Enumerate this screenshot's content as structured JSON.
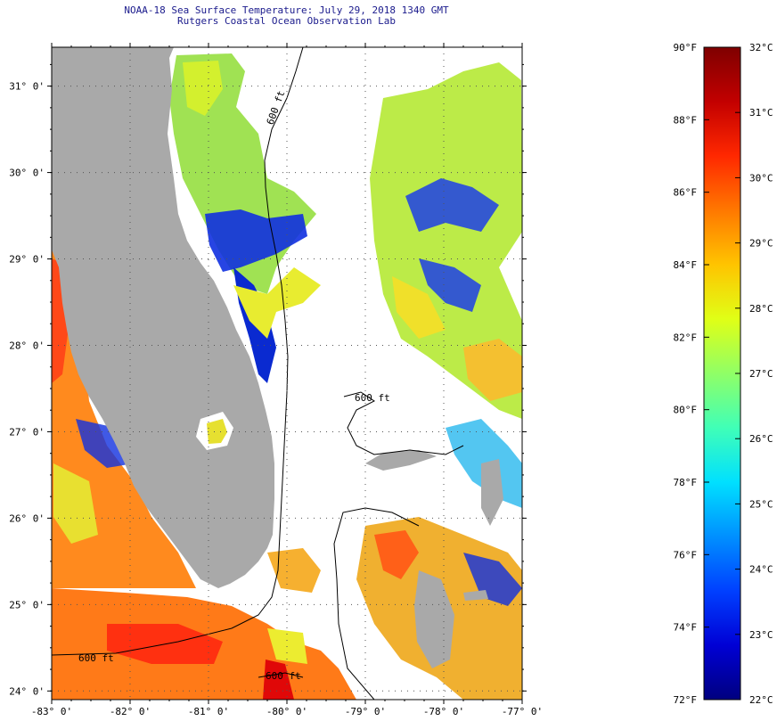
{
  "title": {
    "line1": "NOAA-18 Sea Surface Temperature:  July 29, 2018 1340 GMT",
    "line2": "Rutgers Coastal Ocean Observation Lab"
  },
  "map": {
    "lon_range": [
      -83,
      -77
    ],
    "lat_range": [
      23.9,
      31.45
    ],
    "grid": "dotted",
    "lat_ticks": [
      {
        "lat": 31,
        "label": "31° 0'"
      },
      {
        "lat": 30,
        "label": "30° 0'"
      },
      {
        "lat": 29,
        "label": "29° 0'"
      },
      {
        "lat": 28,
        "label": "28° 0'"
      },
      {
        "lat": 27,
        "label": "27° 0'"
      },
      {
        "lat": 26,
        "label": "26° 0'"
      },
      {
        "lat": 25,
        "label": "25° 0'"
      },
      {
        "lat": 24,
        "label": "24° 0'"
      }
    ],
    "lon_ticks": [
      {
        "lon": -83,
        "label": "-83° 0'"
      },
      {
        "lon": -82,
        "label": "-82° 0'"
      },
      {
        "lon": -81,
        "label": "-81° 0'"
      },
      {
        "lon": -80,
        "label": "-80° 0'"
      },
      {
        "lon": -79,
        "label": "-79° 0'"
      },
      {
        "lon": -78,
        "label": "-78° 0'"
      },
      {
        "lon": -77,
        "label": "-77° 0'"
      }
    ],
    "isobath_label": "600 ft",
    "land_color": "#a9a9a9",
    "no_data_color": "#ffffff"
  },
  "colorbar": {
    "min_f": 72,
    "max_f": 90,
    "min_c": 22,
    "max_c": 32,
    "f_ticks": [
      {
        "v": 90,
        "label": "90°F"
      },
      {
        "v": 88,
        "label": "88°F"
      },
      {
        "v": 86,
        "label": "86°F"
      },
      {
        "v": 84,
        "label": "84°F"
      },
      {
        "v": 82,
        "label": "82°F"
      },
      {
        "v": 80,
        "label": "80°F"
      },
      {
        "v": 78,
        "label": "78°F"
      },
      {
        "v": 76,
        "label": "76°F"
      },
      {
        "v": 74,
        "label": "74°F"
      },
      {
        "v": 72,
        "label": "72°F"
      }
    ],
    "c_ticks": [
      {
        "v": 32,
        "label": "32°C"
      },
      {
        "v": 31,
        "label": "31°C"
      },
      {
        "v": 30,
        "label": "30°C"
      },
      {
        "v": 29,
        "label": "29°C"
      },
      {
        "v": 28,
        "label": "28°C"
      },
      {
        "v": 27,
        "label": "27°C"
      },
      {
        "v": 26,
        "label": "26°C"
      },
      {
        "v": 25,
        "label": "25°C"
      },
      {
        "v": 24,
        "label": "24°C"
      },
      {
        "v": 23,
        "label": "23°C"
      },
      {
        "v": 22,
        "label": "22°C"
      }
    ],
    "colors": [
      "#00007f",
      "#0000d5",
      "#0040ff",
      "#0090ff",
      "#00e0ff",
      "#40ffb7",
      "#90ff66",
      "#e0ff16",
      "#ffc400",
      "#ff7800",
      "#ff2800",
      "#c20000",
      "#7f0000"
    ]
  }
}
